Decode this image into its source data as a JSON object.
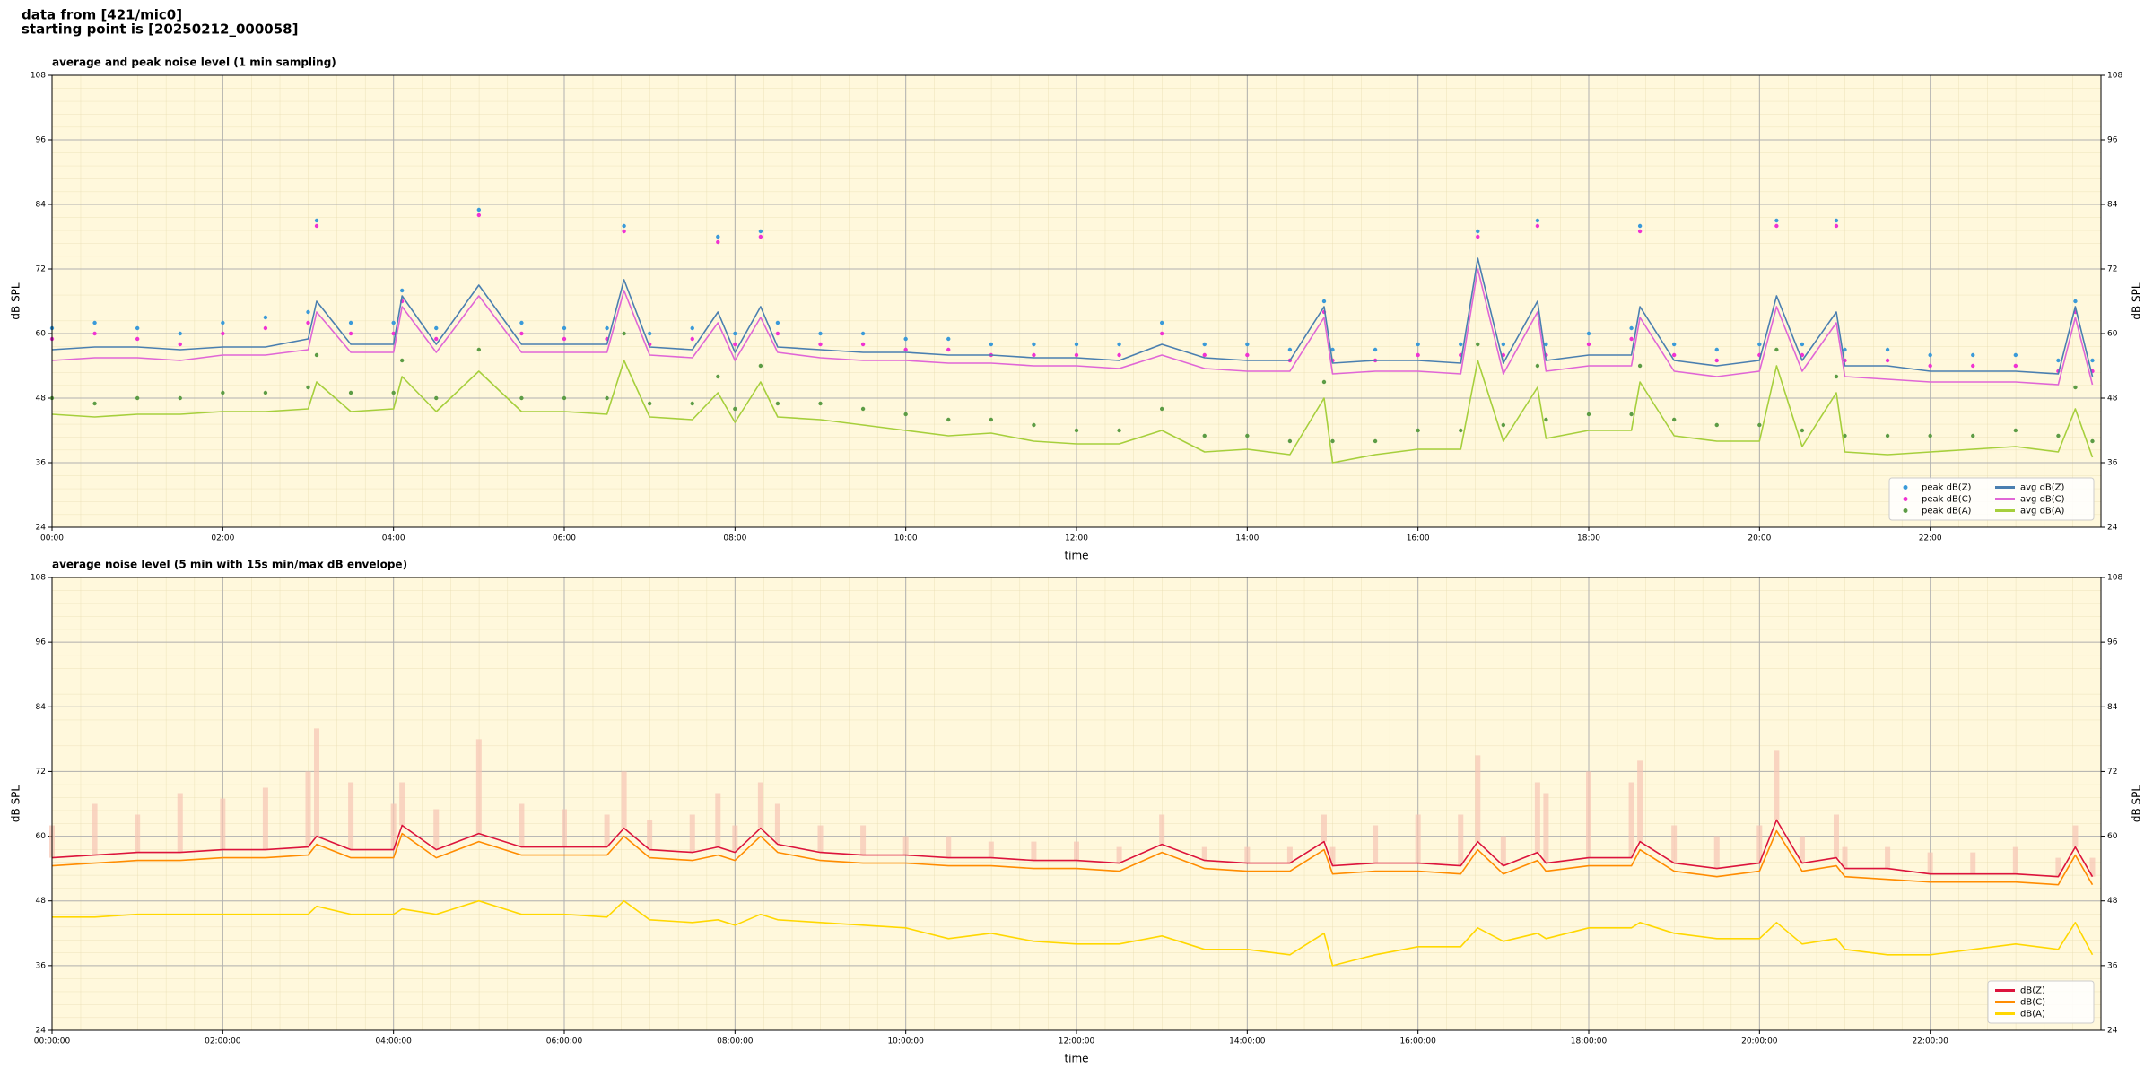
{
  "suptitle": [
    "data from [421/mic0]",
    "starting point is [20250212_000058]"
  ],
  "chart_data": [
    {
      "type": "line",
      "title": "average and peak noise level (1 min sampling)",
      "xlabel": "time",
      "ylabel": "dB SPL",
      "y2label": "dB SPL",
      "xlim": [
        0,
        24
      ],
      "xticks": [
        {
          "value": 0,
          "label": "00:00"
        },
        {
          "value": 2,
          "label": "02:00"
        },
        {
          "value": 4,
          "label": "04:00"
        },
        {
          "value": 6,
          "label": "06:00"
        },
        {
          "value": 8,
          "label": "08:00"
        },
        {
          "value": 10,
          "label": "10:00"
        },
        {
          "value": 12,
          "label": "12:00"
        },
        {
          "value": 14,
          "label": "14:00"
        },
        {
          "value": 16,
          "label": "16:00"
        },
        {
          "value": 18,
          "label": "18:00"
        },
        {
          "value": 20,
          "label": "20:00"
        },
        {
          "value": 22,
          "label": "22:00"
        }
      ],
      "ylim": [
        24,
        108
      ],
      "yticks": [
        24,
        36,
        48,
        60,
        72,
        84,
        96,
        108
      ],
      "y2lim": [
        24,
        108
      ],
      "y2ticks": [
        24,
        36,
        48,
        60,
        72,
        84,
        96,
        108
      ],
      "grid": true,
      "legend_loc": "lower right",
      "legend_ncol": 2,
      "x": [
        0,
        0.5,
        1,
        1.5,
        2,
        2.5,
        3,
        3.1,
        3.5,
        4,
        4.1,
        4.5,
        5,
        5.5,
        6,
        6.5,
        6.7,
        7,
        7.5,
        7.8,
        8,
        8.3,
        8.5,
        9,
        9.5,
        10,
        10.5,
        11,
        11.5,
        12,
        12.5,
        13,
        13.5,
        14,
        14.5,
        14.9,
        15,
        15.5,
        16,
        16.5,
        16.7,
        17,
        17.4,
        17.5,
        18,
        18.5,
        18.6,
        19,
        19.5,
        20,
        20.2,
        20.5,
        20.9,
        21,
        21.5,
        22,
        22.5,
        23,
        23.5,
        23.7,
        23.9
      ],
      "series": [
        {
          "name": "peak dB(Z)",
          "type": "scatter",
          "color": "#3a9ad9",
          "values": [
            61,
            62,
            61,
            60,
            62,
            63,
            64,
            81,
            62,
            62,
            68,
            61,
            83,
            62,
            61,
            61,
            80,
            60,
            61,
            78,
            60,
            79,
            62,
            60,
            60,
            59,
            59,
            58,
            58,
            58,
            58,
            62,
            58,
            58,
            57,
            66,
            57,
            57,
            58,
            58,
            79,
            58,
            81,
            58,
            60,
            61,
            80,
            58,
            57,
            58,
            81,
            58,
            81,
            57,
            57,
            56,
            56,
            56,
            55,
            66,
            55
          ]
        },
        {
          "name": "peak dB(C)",
          "type": "scatter",
          "color": "#f032d2",
          "values": [
            59,
            60,
            59,
            58,
            60,
            61,
            62,
            80,
            60,
            60,
            66,
            59,
            82,
            60,
            59,
            59,
            79,
            58,
            59,
            77,
            58,
            78,
            60,
            58,
            58,
            57,
            57,
            56,
            56,
            56,
            56,
            60,
            56,
            56,
            55,
            64,
            55,
            55,
            56,
            56,
            78,
            56,
            80,
            56,
            58,
            59,
            79,
            56,
            55,
            56,
            80,
            56,
            80,
            55,
            55,
            54,
            54,
            54,
            53,
            64,
            53
          ]
        },
        {
          "name": "peak dB(A)",
          "type": "scatter",
          "color": "#5c9c45",
          "values": [
            48,
            47,
            48,
            48,
            49,
            49,
            50,
            56,
            49,
            49,
            55,
            48,
            57,
            48,
            48,
            48,
            60,
            47,
            47,
            52,
            46,
            54,
            47,
            47,
            46,
            45,
            44,
            44,
            43,
            42,
            42,
            46,
            41,
            41,
            40,
            51,
            40,
            40,
            42,
            42,
            58,
            43,
            54,
            44,
            45,
            45,
            54,
            44,
            43,
            43,
            57,
            42,
            52,
            41,
            41,
            41,
            41,
            42,
            41,
            50,
            40
          ]
        },
        {
          "name": "avg dB(Z)",
          "type": "line",
          "color": "#4a7fb0",
          "values": [
            57,
            57.5,
            57.5,
            57,
            57.5,
            57.5,
            59,
            66,
            58,
            58,
            67,
            58,
            69,
            58,
            58,
            58,
            70,
            57.5,
            57,
            64,
            56.5,
            65,
            57.5,
            57,
            56.5,
            56.5,
            56,
            56,
            55.5,
            55.5,
            55,
            58,
            55.5,
            55,
            55,
            65,
            54.5,
            55,
            55,
            54.5,
            74,
            54.5,
            66,
            55,
            56,
            56,
            65,
            55,
            54,
            55,
            67,
            55,
            64,
            54,
            54,
            53,
            53,
            53,
            52.5,
            65,
            52
          ]
        },
        {
          "name": "avg dB(C)",
          "type": "line",
          "color": "#e066d6",
          "values": [
            55,
            55.5,
            55.5,
            55,
            56,
            56,
            57,
            64,
            56.5,
            56.5,
            65,
            56.5,
            67,
            56.5,
            56.5,
            56.5,
            68,
            56,
            55.5,
            62,
            55,
            63,
            56.5,
            55.5,
            55,
            55,
            54.5,
            54.5,
            54,
            54,
            53.5,
            56,
            53.5,
            53,
            53,
            63,
            52.5,
            53,
            53,
            52.5,
            72,
            52.5,
            64,
            53,
            54,
            54,
            63,
            53,
            52,
            53,
            65,
            53,
            62,
            52,
            51.5,
            51,
            51,
            51,
            50.5,
            63,
            50.5
          ]
        },
        {
          "name": "avg dB(A)",
          "type": "line",
          "color": "#a6cf3c",
          "values": [
            45,
            44.5,
            45,
            45,
            45.5,
            45.5,
            46,
            51,
            45.5,
            46,
            52,
            45.5,
            53,
            45.5,
            45.5,
            45,
            55,
            44.5,
            44,
            49,
            43.5,
            51,
            44.5,
            44,
            43,
            42,
            41,
            41.5,
            40,
            39.5,
            39.5,
            42,
            38,
            38.5,
            37.5,
            48,
            36,
            37.5,
            38.5,
            38.5,
            55,
            40,
            50,
            40.5,
            42,
            42,
            51,
            41,
            40,
            40,
            54,
            39,
            49,
            38,
            37.5,
            38,
            38.5,
            39,
            38,
            46,
            37
          ]
        }
      ]
    },
    {
      "type": "line",
      "title": "average noise level (5 min with 15s min/max dB envelope)",
      "xlabel": "time",
      "ylabel": "dB SPL",
      "y2label": "dB SPL",
      "xlim": [
        0,
        24
      ],
      "xticks": [
        {
          "value": 0,
          "label": "00:00:00"
        },
        {
          "value": 2,
          "label": "02:00:00"
        },
        {
          "value": 4,
          "label": "04:00:00"
        },
        {
          "value": 6,
          "label": "06:00:00"
        },
        {
          "value": 8,
          "label": "08:00:00"
        },
        {
          "value": 10,
          "label": "10:00:00"
        },
        {
          "value": 12,
          "label": "12:00:00"
        },
        {
          "value": 14,
          "label": "14:00:00"
        },
        {
          "value": 16,
          "label": "16:00:00"
        },
        {
          "value": 18,
          "label": "18:00:00"
        },
        {
          "value": 20,
          "label": "20:00:00"
        },
        {
          "value": 22,
          "label": "22:00:00"
        }
      ],
      "ylim": [
        24,
        108
      ],
      "yticks": [
        24,
        36,
        48,
        60,
        72,
        84,
        96,
        108
      ],
      "y2lim": [
        24,
        108
      ],
      "y2ticks": [
        24,
        36,
        48,
        60,
        72,
        84,
        96,
        108
      ],
      "grid": true,
      "legend_loc": "lower right",
      "legend_ncol": 1,
      "x": [
        0,
        0.5,
        1,
        1.5,
        2,
        2.5,
        3,
        3.1,
        3.5,
        4,
        4.1,
        4.5,
        5,
        5.5,
        6,
        6.5,
        6.7,
        7,
        7.5,
        7.8,
        8,
        8.3,
        8.5,
        9,
        9.5,
        10,
        10.5,
        11,
        11.5,
        12,
        12.5,
        13,
        13.5,
        14,
        14.5,
        14.9,
        15,
        15.5,
        16,
        16.5,
        16.7,
        17,
        17.4,
        17.5,
        18,
        18.5,
        18.6,
        19,
        19.5,
        20,
        20.2,
        20.5,
        20.9,
        21,
        21.5,
        22,
        22.5,
        23,
        23.5,
        23.7,
        23.9
      ],
      "envelope": {
        "color": "#f7c4b4",
        "values": [
          62,
          66,
          64,
          68,
          67,
          69,
          72,
          80,
          70,
          66,
          70,
          65,
          78,
          66,
          65,
          64,
          72,
          63,
          64,
          68,
          62,
          70,
          66,
          62,
          62,
          60,
          60,
          59,
          59,
          59,
          58,
          64,
          58,
          58,
          58,
          64,
          58,
          62,
          64,
          64,
          75,
          60,
          70,
          68,
          72,
          70,
          74,
          62,
          60,
          62,
          76,
          60,
          64,
          58,
          58,
          57,
          57,
          58,
          56,
          62,
          56
        ]
      },
      "series": [
        {
          "name": "dB(Z)",
          "type": "line",
          "color": "#dc143c",
          "values": [
            56,
            56.5,
            57,
            57,
            57.5,
            57.5,
            58,
            60,
            57.5,
            57.5,
            62,
            57.5,
            60.5,
            58,
            58,
            58,
            61.5,
            57.5,
            57,
            58,
            57,
            61.5,
            58.5,
            57,
            56.5,
            56.5,
            56,
            56,
            55.5,
            55.5,
            55,
            58.5,
            55.5,
            55,
            55,
            59,
            54.5,
            55,
            55,
            54.5,
            59,
            54.5,
            57,
            55,
            56,
            56,
            59,
            55,
            54,
            55,
            63,
            55,
            56,
            54,
            54,
            53,
            53,
            53,
            52.5,
            58,
            52.5
          ]
        },
        {
          "name": "dB(C)",
          "type": "line",
          "color": "#ff8c00",
          "values": [
            54.5,
            55,
            55.5,
            55.5,
            56,
            56,
            56.5,
            58.5,
            56,
            56,
            60.5,
            56,
            59,
            56.5,
            56.5,
            56.5,
            60,
            56,
            55.5,
            56.5,
            55.5,
            60,
            57,
            55.5,
            55,
            55,
            54.5,
            54.5,
            54,
            54,
            53.5,
            57,
            54,
            53.5,
            53.5,
            57.5,
            53,
            53.5,
            53.5,
            53,
            57.5,
            53,
            55.5,
            53.5,
            54.5,
            54.5,
            57.5,
            53.5,
            52.5,
            53.5,
            61,
            53.5,
            54.5,
            52.5,
            52,
            51.5,
            51.5,
            51.5,
            51,
            56.5,
            51
          ]
        },
        {
          "name": "dB(A)",
          "type": "line",
          "color": "#ffd700",
          "values": [
            45,
            45,
            45.5,
            45.5,
            45.5,
            45.5,
            45.5,
            47,
            45.5,
            45.5,
            46.5,
            45.5,
            48,
            45.5,
            45.5,
            45,
            48,
            44.5,
            44,
            44.5,
            43.5,
            45.5,
            44.5,
            44,
            43.5,
            43,
            41,
            42,
            40.5,
            40,
            40,
            41.5,
            39,
            39,
            38,
            42,
            36,
            38,
            39.5,
            39.5,
            43,
            40.5,
            42,
            41,
            43,
            43,
            44,
            42,
            41,
            41,
            44,
            40,
            41,
            39,
            38,
            38,
            39,
            40,
            39,
            44,
            38
          ]
        }
      ]
    }
  ]
}
